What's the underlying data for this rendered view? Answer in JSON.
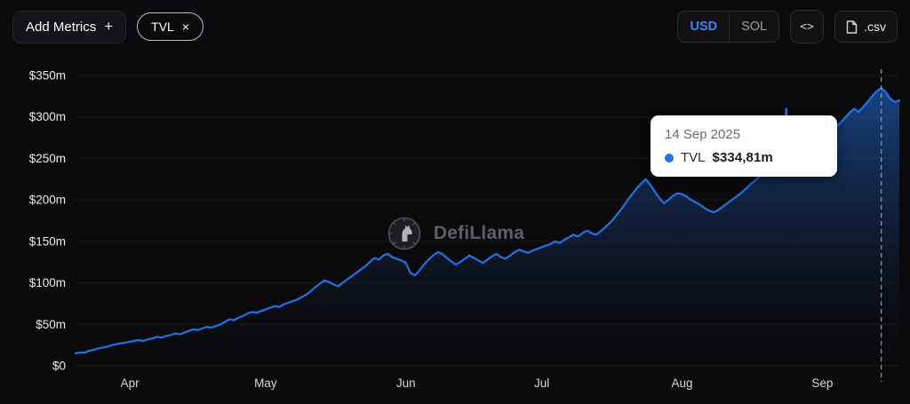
{
  "toolbar": {
    "add_metrics_label": "Add Metrics",
    "add_metrics_plus": "+",
    "metric_chip": {
      "label": "TVL",
      "close": "×"
    },
    "currency_toggle": {
      "options": [
        "USD",
        "SOL"
      ],
      "selected": "USD"
    },
    "embed_icon_label": "<>",
    "csv_label": ".csv"
  },
  "watermark": {
    "text": "DefiLlama"
  },
  "tooltip": {
    "date": "14 Sep 2025",
    "series_label": "TVL",
    "value": "$334,81m",
    "dot_color": "#2172e5"
  },
  "chart_data": {
    "type": "area",
    "title": "Solana protocol TVL over time",
    "xlabel": "",
    "ylabel": "",
    "ylim": [
      0,
      350
    ],
    "grid": true,
    "line_color": "#2172e5",
    "y_ticks": [
      "$0",
      "$50m",
      "$100m",
      "$150m",
      "$200m",
      "$250m",
      "$300m",
      "$350m"
    ],
    "x_ticks": [
      "Apr",
      "May",
      "Jun",
      "Jul",
      "Aug",
      "Sep"
    ],
    "x_tick_positions": [
      12,
      42,
      73,
      103,
      134,
      165
    ],
    "cursor_index": 178,
    "cursor_date": "14 Sep 2025",
    "cursor_value": 334.81,
    "series": [
      {
        "name": "TVL",
        "unit": "$m",
        "values": [
          15,
          16,
          16,
          18,
          19,
          21,
          22,
          23,
          25,
          26,
          27,
          28,
          29,
          30,
          31,
          30,
          32,
          33,
          35,
          34,
          36,
          37,
          39,
          38,
          40,
          42,
          44,
          43,
          45,
          47,
          46,
          48,
          50,
          53,
          56,
          55,
          58,
          60,
          63,
          65,
          64,
          66,
          68,
          70,
          72,
          71,
          74,
          76,
          78,
          80,
          83,
          86,
          90,
          95,
          99,
          103,
          101,
          98,
          96,
          100,
          104,
          108,
          112,
          116,
          120,
          125,
          130,
          128,
          133,
          135,
          131,
          129,
          127,
          124,
          112,
          109,
          115,
          122,
          128,
          133,
          137,
          135,
          130,
          126,
          122,
          125,
          129,
          133,
          130,
          127,
          124,
          128,
          132,
          135,
          131,
          129,
          133,
          137,
          140,
          138,
          136,
          139,
          141,
          143,
          145,
          147,
          150,
          148,
          152,
          155,
          158,
          156,
          160,
          163,
          160,
          158,
          162,
          167,
          172,
          178,
          185,
          192,
          200,
          207,
          214,
          220,
          225,
          218,
          210,
          202,
          196,
          200,
          205,
          208,
          207,
          204,
          200,
          197,
          194,
          190,
          187,
          185,
          188,
          192,
          196,
          200,
          204,
          208,
          213,
          218,
          223,
          228,
          233,
          238,
          243,
          248,
          252,
          310,
          255,
          250,
          247,
          252,
          258,
          263,
          268,
          272,
          277,
          282,
          288,
          293,
          299,
          305,
          310,
          306,
          312,
          318,
          325,
          331,
          334.81,
          330,
          322,
          318,
          320
        ]
      }
    ]
  }
}
